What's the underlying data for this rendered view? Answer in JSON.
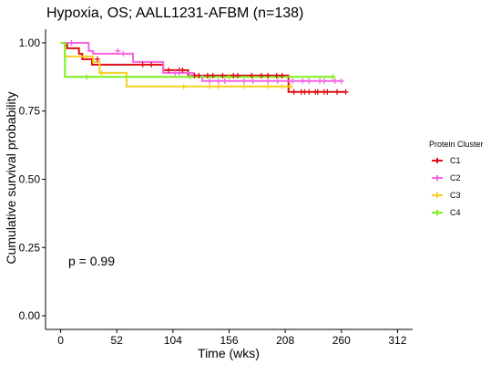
{
  "chart_data": {
    "type": "line",
    "subtype": "kaplan-meier",
    "title": "Hypoxia,  OS; AALL1231-AFBM (n=138)",
    "xlabel": "Time (wks)",
    "ylabel": "Cumulative survival probability",
    "xlim": [
      -14,
      326
    ],
    "ylim": [
      -0.05,
      1.05
    ],
    "x_ticks": [
      0,
      52,
      104,
      156,
      208,
      260,
      312
    ],
    "y_ticks": [
      0.0,
      0.25,
      0.5,
      0.75,
      1.0
    ],
    "y_tick_labels": [
      "0.00",
      "0.25",
      "0.50",
      "0.75",
      "1.00"
    ],
    "grid": false,
    "legend": {
      "title": "Protein Cluster",
      "position": "right"
    },
    "annotation": "p = 0.99",
    "series": [
      {
        "name": "C1",
        "color": "#dd0f16",
        "steps": [
          [
            0,
            1.0
          ],
          [
            6,
            0.98
          ],
          [
            17,
            0.96
          ],
          [
            20,
            0.94
          ],
          [
            29,
            0.92
          ],
          [
            40,
            0.92
          ],
          [
            94,
            0.92
          ],
          [
            95,
            0.9
          ],
          [
            107,
            0.9
          ],
          [
            118,
            0.88
          ],
          [
            210,
            0.88
          ],
          [
            211,
            0.82
          ],
          [
            264,
            0.82
          ]
        ],
        "censors": [
          [
            34,
            0.94
          ],
          [
            76,
            0.92
          ],
          [
            84,
            0.92
          ],
          [
            100,
            0.9
          ],
          [
            110,
            0.9
          ],
          [
            113,
            0.9
          ],
          [
            124,
            0.88
          ],
          [
            128,
            0.88
          ],
          [
            136,
            0.88
          ],
          [
            141,
            0.88
          ],
          [
            150,
            0.88
          ],
          [
            160,
            0.88
          ],
          [
            164,
            0.88
          ],
          [
            177,
            0.88
          ],
          [
            186,
            0.88
          ],
          [
            192,
            0.88
          ],
          [
            200,
            0.88
          ],
          [
            205,
            0.88
          ],
          [
            216,
            0.82
          ],
          [
            223,
            0.82
          ],
          [
            226,
            0.82
          ],
          [
            230,
            0.82
          ],
          [
            236,
            0.82
          ],
          [
            238,
            0.82
          ],
          [
            244,
            0.82
          ],
          [
            247,
            0.82
          ],
          [
            256,
            0.82
          ],
          [
            264,
            0.82
          ]
        ]
      },
      {
        "name": "C2",
        "color": "#f564e3",
        "steps": [
          [
            0,
            1.0
          ],
          [
            26,
            0.97
          ],
          [
            30,
            0.96
          ],
          [
            67,
            0.93
          ],
          [
            95,
            0.89
          ],
          [
            123,
            0.88
          ],
          [
            131,
            0.86
          ],
          [
            260,
            0.86
          ]
        ],
        "censors": [
          [
            10,
            1.0
          ],
          [
            53,
            0.97
          ],
          [
            58,
            0.96
          ],
          [
            106,
            0.89
          ],
          [
            110,
            0.89
          ],
          [
            120,
            0.88
          ],
          [
            138,
            0.86
          ],
          [
            146,
            0.86
          ],
          [
            152,
            0.86
          ],
          [
            170,
            0.86
          ],
          [
            178,
            0.86
          ],
          [
            192,
            0.86
          ],
          [
            201,
            0.86
          ],
          [
            215,
            0.86
          ],
          [
            224,
            0.86
          ],
          [
            230,
            0.86
          ],
          [
            240,
            0.86
          ],
          [
            244,
            0.86
          ],
          [
            254,
            0.86
          ],
          [
            260,
            0.86
          ]
        ]
      },
      {
        "name": "C3",
        "color": "#f5d021",
        "steps": [
          [
            0,
            1.0
          ],
          [
            4,
            0.95
          ],
          [
            29,
            0.95
          ],
          [
            30,
            0.93
          ],
          [
            36,
            0.89
          ],
          [
            61,
            0.84
          ],
          [
            213,
            0.84
          ]
        ],
        "censors": [
          [
            38,
            0.89
          ],
          [
            114,
            0.84
          ],
          [
            138,
            0.84
          ],
          [
            146,
            0.84
          ],
          [
            170,
            0.84
          ],
          [
            192,
            0.84
          ],
          [
            205,
            0.84
          ],
          [
            213,
            0.84
          ]
        ]
      },
      {
        "name": "C4",
        "color": "#7cf01a",
        "steps": [
          [
            0,
            1.0
          ],
          [
            4,
            0.875
          ],
          [
            254,
            0.875
          ]
        ],
        "censors": [
          [
            24,
            0.875
          ],
          [
            120,
            0.875
          ],
          [
            156,
            0.875
          ],
          [
            252,
            0.875
          ]
        ]
      }
    ]
  }
}
